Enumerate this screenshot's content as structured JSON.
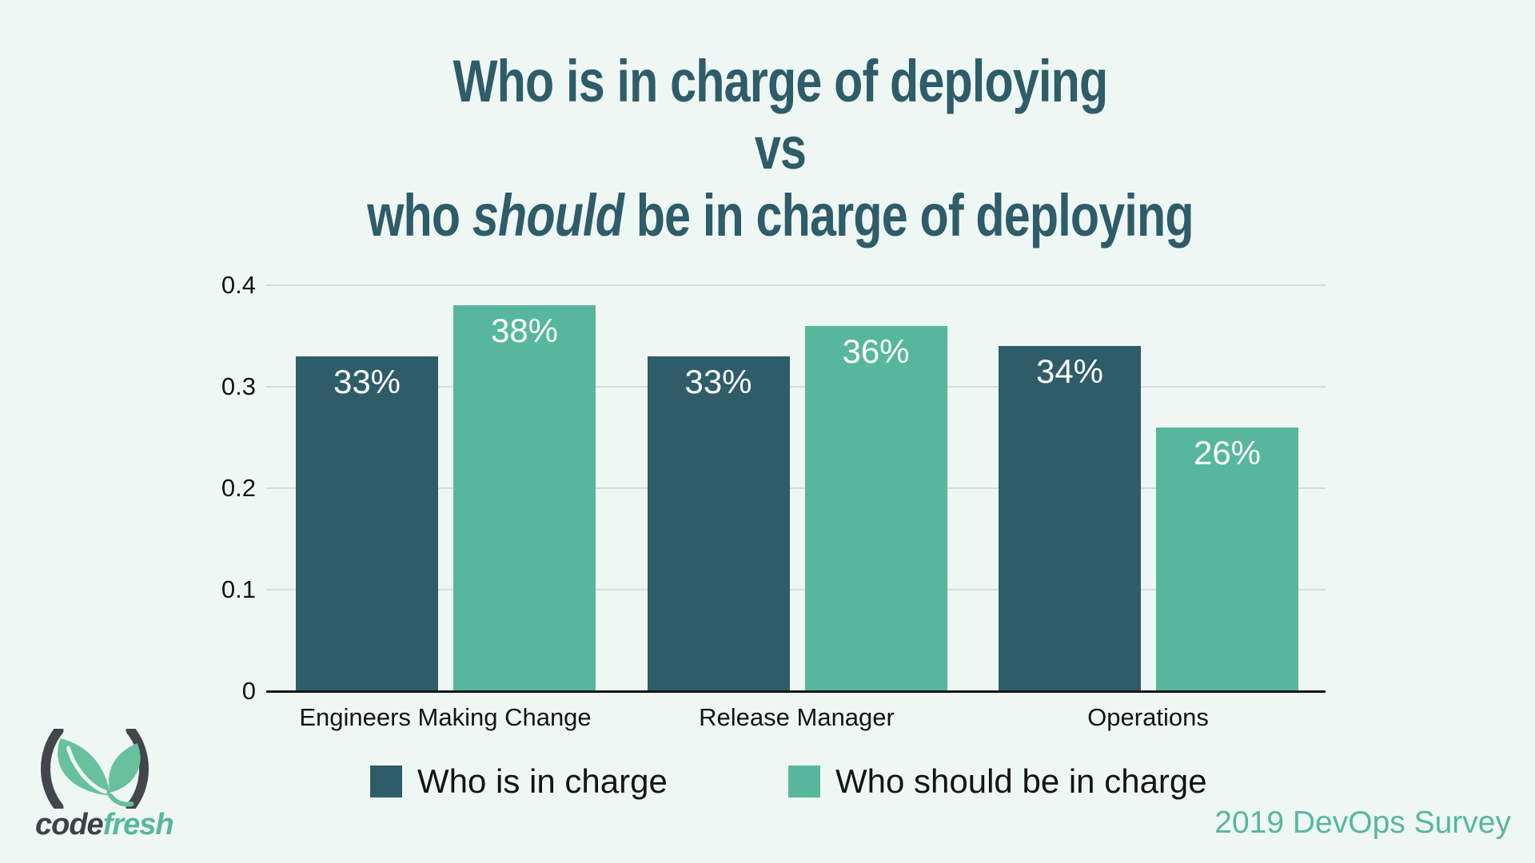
{
  "title": {
    "line1": "Who is in charge of deploying",
    "line2": "vs",
    "line3_prefix": "who ",
    "line3_italic": "should",
    "line3_suffix": " be in charge of deploying"
  },
  "chart_data": {
    "type": "bar",
    "title": "Who is in charge of deploying vs who should be in charge of deploying",
    "categories": [
      "Engineers Making Change",
      "Release Manager",
      "Operations"
    ],
    "series": [
      {
        "name": "Who is in charge",
        "color": "#2e5c69",
        "values": [
          0.33,
          0.33,
          0.34
        ],
        "value_labels": [
          "33%",
          "33%",
          "34%"
        ]
      },
      {
        "name": "Who should be in charge",
        "color": "#57b79c",
        "values": [
          0.38,
          0.36,
          0.26
        ],
        "value_labels": [
          "38%",
          "36%",
          "26%"
        ]
      }
    ],
    "ylim": [
      0,
      0.4
    ],
    "yticks": [
      {
        "value": 0,
        "label": "0"
      },
      {
        "value": 0.1,
        "label": "0.1"
      },
      {
        "value": 0.2,
        "label": "0.2"
      },
      {
        "value": 0.3,
        "label": "0.3"
      },
      {
        "value": 0.4,
        "label": "0.4"
      }
    ],
    "grid": true,
    "legend_position": "bottom",
    "value_label_format": "percent"
  },
  "footer": {
    "logo": {
      "bold_part": "code",
      "light_part": "fresh"
    },
    "survey_label": "2019 DevOps Survey"
  },
  "colors": {
    "background": "#eff7f4",
    "title_text": "#2e5c69",
    "bar_dark": "#2e5c69",
    "bar_green": "#57b79c",
    "gridline": "#d8dddb",
    "axis": "#161616",
    "label_text": "#141414",
    "value_label_text": "#ffffff",
    "survey_text": "#57b79c",
    "logo_dark": "#43464b",
    "logo_leaf": "#68c09c",
    "logo_green": "#57b79c"
  }
}
